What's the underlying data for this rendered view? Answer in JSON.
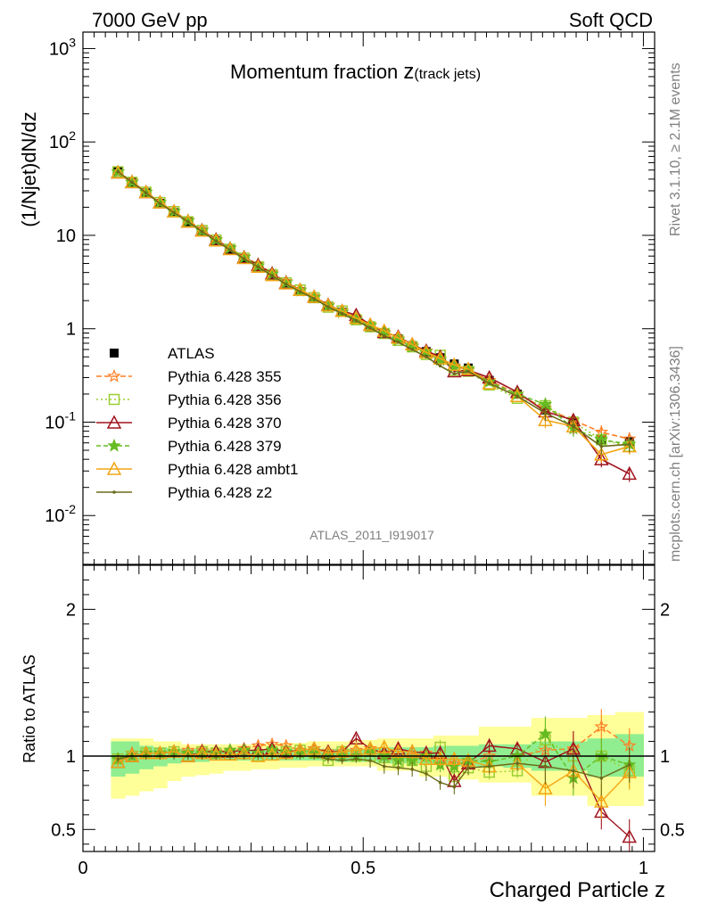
{
  "header": {
    "left": "7000 GeV pp",
    "right": "Soft QCD"
  },
  "side_labels": {
    "rivet": "Rivet 3.1.10, ≥ 2.1M events",
    "mcplots": "mcplots.cern.ch [arXiv:1306.3436]"
  },
  "title": {
    "main": "Momentum fraction ",
    "var": "z",
    "sub": "(track jets)"
  },
  "analysis_id": "ATLAS_2011_I919017",
  "colors": {
    "data": "#000000",
    "band_inner": "#90ee90",
    "band_outer": "#ffff99"
  },
  "chart_data": [
    {
      "type": "line",
      "panel": "main",
      "ylabel": "(1/Njet)dN/dz",
      "yscale": "log",
      "ylim": [
        0.003,
        1500
      ],
      "xlim": [
        0,
        1.02
      ],
      "y_tick_labels": [
        "10^-2",
        "10^-1",
        "1",
        "10",
        "10^2",
        "10^3"
      ],
      "x": [
        0.0625,
        0.0875,
        0.1125,
        0.1375,
        0.1625,
        0.1875,
        0.2125,
        0.2375,
        0.2625,
        0.2875,
        0.3125,
        0.3375,
        0.3625,
        0.3875,
        0.4125,
        0.4375,
        0.4625,
        0.4875,
        0.5125,
        0.5375,
        0.5625,
        0.5875,
        0.6125,
        0.6375,
        0.6625,
        0.6875,
        0.725,
        0.775,
        0.825,
        0.875,
        0.925,
        0.975
      ],
      "series": [
        {
          "name": "ATLAS",
          "marker": "square-filled",
          "color": "#000000",
          "values": [
            49,
            37,
            28.5,
            22,
            17.5,
            14,
            11,
            8.7,
            7,
            5.6,
            4.6,
            3.7,
            3.0,
            2.5,
            2.1,
            1.75,
            1.5,
            1.25,
            1.05,
            0.9,
            0.78,
            0.66,
            0.57,
            0.49,
            0.42,
            0.38,
            0.28,
            0.2,
            0.135,
            0.1,
            0.065,
            0.062
          ]
        },
        {
          "name": "Pythia 6.428 355",
          "marker": "star-open",
          "color": "#ff7f24",
          "dash": "6,3",
          "values": [
            48,
            38,
            29,
            22.5,
            18,
            14.5,
            11.5,
            9,
            7.3,
            5.9,
            4.9,
            3.95,
            3.2,
            2.6,
            2.2,
            1.8,
            1.55,
            1.3,
            1.1,
            0.92,
            0.78,
            0.66,
            0.58,
            0.48,
            0.4,
            0.36,
            0.28,
            0.2,
            0.14,
            0.105,
            0.078,
            0.066
          ]
        },
        {
          "name": "Pythia 6.428 356",
          "marker": "square-open",
          "color": "#9acd32",
          "dash": "2,3",
          "values": [
            48,
            37,
            29,
            22.5,
            18,
            14,
            11.3,
            8.9,
            7.1,
            5.7,
            4.6,
            3.8,
            3.1,
            2.6,
            2.15,
            1.7,
            1.55,
            1.25,
            1.05,
            0.89,
            0.75,
            0.64,
            0.53,
            0.52,
            0.36,
            0.35,
            0.25,
            0.18,
            0.15,
            0.1,
            0.065,
            0.055
          ]
        },
        {
          "name": "Pythia 6.428 370",
          "marker": "triangle-open",
          "color": "#a0141e",
          "dash": "",
          "values": [
            47,
            37,
            29,
            22.5,
            18,
            14,
            11.3,
            9,
            7.2,
            5.8,
            4.8,
            3.9,
            3.1,
            2.6,
            2.2,
            1.8,
            1.55,
            1.4,
            1.1,
            0.92,
            0.82,
            0.68,
            0.58,
            0.5,
            0.35,
            0.36,
            0.3,
            0.21,
            0.13,
            0.105,
            0.04,
            0.028
          ]
        },
        {
          "name": "Pythia 6.428 379",
          "marker": "star-filled",
          "color": "#66bb22",
          "dash": "5,3",
          "values": [
            48,
            37,
            29,
            22.5,
            18,
            14.3,
            11.2,
            8.9,
            7.3,
            5.8,
            4.7,
            3.85,
            3.1,
            2.55,
            2.15,
            1.75,
            1.5,
            1.25,
            1.08,
            0.9,
            0.76,
            0.64,
            0.57,
            0.46,
            0.39,
            0.37,
            0.27,
            0.2,
            0.155,
            0.085,
            0.065,
            0.058
          ]
        },
        {
          "name": "Pythia 6.428 ambt1",
          "marker": "triangle-open",
          "color": "#f2a614",
          "dash": "",
          "values": [
            47,
            37,
            29,
            22.5,
            18,
            14,
            11.2,
            8.8,
            7.1,
            5.7,
            4.6,
            3.75,
            3.05,
            2.6,
            2.2,
            1.78,
            1.55,
            1.3,
            1.1,
            0.95,
            0.8,
            0.68,
            0.56,
            0.48,
            0.41,
            0.37,
            0.26,
            0.19,
            0.105,
            0.09,
            0.045,
            0.055
          ]
        },
        {
          "name": "Pythia 6.428 z2",
          "marker": "dot",
          "color": "#6b6b1a",
          "dash": "",
          "values": [
            48,
            37,
            28.5,
            22,
            17.5,
            14,
            11,
            8.7,
            7,
            5.6,
            4.6,
            3.7,
            3.0,
            2.5,
            2.1,
            1.72,
            1.45,
            1.22,
            1.02,
            0.84,
            0.72,
            0.6,
            0.5,
            0.4,
            0.33,
            0.35,
            0.26,
            0.19,
            0.125,
            0.09,
            0.055,
            0.058
          ]
        }
      ]
    },
    {
      "type": "line",
      "panel": "ratio",
      "ylabel": "Ratio to ATLAS",
      "xlabel": "Charged Particle z",
      "ylim": [
        0.35,
        2.3
      ],
      "xlim": [
        0,
        1.02
      ],
      "y_tick_labels": [
        "0.5",
        "1",
        "2"
      ],
      "x_tick_labels": [
        "0",
        "0.5",
        "1"
      ],
      "x": [
        0.0625,
        0.0875,
        0.1125,
        0.1375,
        0.1625,
        0.1875,
        0.2125,
        0.2375,
        0.2625,
        0.2875,
        0.3125,
        0.3375,
        0.3625,
        0.3875,
        0.4125,
        0.4375,
        0.4625,
        0.4875,
        0.5125,
        0.5375,
        0.5625,
        0.5875,
        0.6125,
        0.6375,
        0.6625,
        0.6875,
        0.725,
        0.775,
        0.825,
        0.875,
        0.925,
        0.975
      ],
      "band_inner": [
        [
          0.86,
          1.1
        ],
        [
          0.88,
          1.1
        ],
        [
          0.91,
          1.07
        ],
        [
          0.93,
          1.06
        ],
        [
          0.95,
          1.05
        ],
        [
          0.96,
          1.05
        ],
        [
          0.96,
          1.05
        ],
        [
          0.97,
          1.04
        ],
        [
          0.97,
          1.04
        ],
        [
          0.97,
          1.04
        ],
        [
          0.97,
          1.04
        ],
        [
          0.97,
          1.04
        ],
        [
          0.97,
          1.04
        ],
        [
          0.97,
          1.04
        ],
        [
          0.97,
          1.04
        ],
        [
          0.97,
          1.05
        ],
        [
          0.96,
          1.05
        ],
        [
          0.96,
          1.05
        ],
        [
          0.96,
          1.05
        ],
        [
          0.95,
          1.06
        ],
        [
          0.95,
          1.06
        ],
        [
          0.95,
          1.06
        ],
        [
          0.94,
          1.06
        ],
        [
          0.94,
          1.07
        ],
        [
          0.93,
          1.07
        ],
        [
          0.93,
          1.07
        ],
        [
          0.93,
          1.08
        ],
        [
          0.92,
          1.08
        ],
        [
          0.9,
          1.1
        ],
        [
          0.9,
          1.1
        ],
        [
          0.86,
          1.12
        ],
        [
          0.86,
          1.15
        ]
      ],
      "band_outer": [
        [
          0.71,
          1.12
        ],
        [
          0.73,
          1.12
        ],
        [
          0.76,
          1.12
        ],
        [
          0.78,
          1.1
        ],
        [
          0.83,
          1.1
        ],
        [
          0.86,
          1.08
        ],
        [
          0.87,
          1.08
        ],
        [
          0.88,
          1.08
        ],
        [
          0.9,
          1.08
        ],
        [
          0.9,
          1.08
        ],
        [
          0.91,
          1.08
        ],
        [
          0.91,
          1.09
        ],
        [
          0.92,
          1.09
        ],
        [
          0.92,
          1.09
        ],
        [
          0.93,
          1.1
        ],
        [
          0.93,
          1.1
        ],
        [
          0.93,
          1.1
        ],
        [
          0.93,
          1.11
        ],
        [
          0.93,
          1.11
        ],
        [
          0.9,
          1.12
        ],
        [
          0.9,
          1.12
        ],
        [
          0.9,
          1.12
        ],
        [
          0.86,
          1.12
        ],
        [
          0.86,
          1.14
        ],
        [
          0.84,
          1.14
        ],
        [
          0.84,
          1.14
        ],
        [
          0.82,
          1.2
        ],
        [
          0.82,
          1.2
        ],
        [
          0.73,
          1.26
        ],
        [
          0.73,
          1.26
        ],
        [
          0.66,
          1.28
        ],
        [
          0.66,
          1.3
        ]
      ],
      "series": [
        {
          "name": "Pythia 6.428 355",
          "color": "#ff7f24",
          "dash": "6,3",
          "marker": "star-open",
          "values": [
            0.98,
            1.02,
            1.02,
            1.02,
            1.03,
            1.04,
            1.04,
            1.03,
            1.04,
            1.05,
            1.07,
            1.08,
            1.07,
            1.04,
            1.05,
            1.03,
            1.03,
            1.04,
            1.05,
            1.02,
            1.0,
            1.0,
            1.02,
            0.98,
            0.95,
            0.95,
            1.0,
            1.0,
            1.04,
            1.05,
            1.2,
            1.07
          ]
        },
        {
          "name": "Pythia 6.428 356",
          "color": "#9acd32",
          "dash": "2,3",
          "marker": "square-open",
          "values": [
            0.98,
            1.0,
            1.02,
            1.02,
            1.03,
            1.0,
            1.03,
            1.02,
            1.01,
            1.02,
            1.0,
            1.03,
            1.03,
            1.04,
            1.02,
            0.97,
            1.03,
            1.0,
            1.0,
            0.99,
            0.96,
            0.97,
            0.93,
            1.06,
            0.86,
            0.92,
            0.89,
            0.9,
            1.11,
            1.0,
            1.0,
            0.9
          ]
        },
        {
          "name": "Pythia 6.428 370",
          "color": "#a0141e",
          "dash": "",
          "marker": "triangle-open",
          "values": [
            0.96,
            1.0,
            1.02,
            1.02,
            1.03,
            1.0,
            1.03,
            1.03,
            1.03,
            1.04,
            1.04,
            1.05,
            1.03,
            1.04,
            1.05,
            1.03,
            1.03,
            1.12,
            1.05,
            1.02,
            1.05,
            1.03,
            1.02,
            1.02,
            0.83,
            0.95,
            1.07,
            1.05,
            0.96,
            1.05,
            0.62,
            0.45
          ]
        },
        {
          "name": "Pythia 6.428 379",
          "color": "#66bb22",
          "dash": "5,3",
          "marker": "star-filled",
          "values": [
            0.98,
            1.0,
            1.02,
            1.02,
            1.03,
            1.02,
            1.02,
            1.02,
            1.04,
            1.04,
            1.02,
            1.04,
            1.03,
            1.02,
            1.02,
            1.0,
            1.0,
            1.0,
            1.03,
            1.0,
            0.97,
            0.97,
            1.0,
            0.94,
            0.93,
            0.97,
            0.96,
            1.0,
            1.15,
            0.85,
            1.0,
            0.94
          ]
        },
        {
          "name": "Pythia 6.428 ambt1",
          "color": "#f2a614",
          "dash": "",
          "marker": "triangle-open",
          "values": [
            0.96,
            1.0,
            1.02,
            1.02,
            1.03,
            1.0,
            1.02,
            1.01,
            1.01,
            1.02,
            1.0,
            1.01,
            1.02,
            1.04,
            1.05,
            1.02,
            1.03,
            1.04,
            1.05,
            1.06,
            1.03,
            1.03,
            0.98,
            0.98,
            0.98,
            0.97,
            0.93,
            0.95,
            0.78,
            0.9,
            0.69,
            0.89
          ]
        },
        {
          "name": "Pythia 6.428 z2",
          "color": "#6b6b1a",
          "dash": "",
          "marker": "dot",
          "values": [
            0.98,
            1.0,
            1.0,
            1.0,
            1.0,
            1.0,
            1.0,
            1.0,
            1.0,
            1.0,
            1.0,
            1.0,
            1.0,
            1.0,
            1.0,
            0.98,
            0.97,
            0.98,
            0.97,
            0.93,
            0.92,
            0.91,
            0.88,
            0.82,
            0.79,
            0.92,
            0.93,
            0.95,
            0.93,
            0.9,
            0.85,
            0.94
          ]
        }
      ]
    }
  ]
}
